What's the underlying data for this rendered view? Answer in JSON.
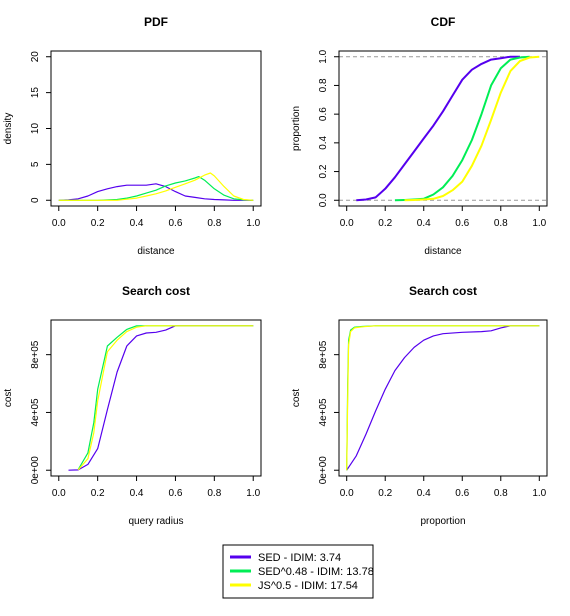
{
  "legend": {
    "entries": [
      {
        "label": "SED - IDIM: 3.74",
        "color": "#5500ee"
      },
      {
        "label": "SED^0.48 - IDIM: 13.78",
        "color": "#00ee55"
      },
      {
        "label": "JS^0.5 - IDIM: 17.54",
        "color": "#ffff00"
      }
    ]
  },
  "chart_data": [
    {
      "type": "line",
      "title": "PDF",
      "xlabel": "distance",
      "ylabel": "density",
      "xlim": [
        0,
        1
      ],
      "ylim": [
        0,
        20
      ],
      "xticks": [
        "0.0",
        "0.2",
        "0.4",
        "0.6",
        "0.8",
        "1.0"
      ],
      "yticks": [
        "0",
        "5",
        "10",
        "15",
        "20"
      ],
      "series": [
        {
          "name": "SED - IDIM: 3.74",
          "color": "#5500ee",
          "x": [
            0,
            0.05,
            0.1,
            0.15,
            0.2,
            0.25,
            0.3,
            0.35,
            0.4,
            0.45,
            0.5,
            0.55,
            0.6,
            0.65,
            0.7,
            0.75,
            0.8,
            0.85,
            0.9,
            0.95,
            1.0
          ],
          "y": [
            0,
            0.05,
            0.2,
            0.6,
            1.2,
            1.6,
            1.9,
            2.1,
            2.1,
            2.1,
            2.3,
            1.9,
            1.2,
            0.6,
            0.4,
            0.2,
            0.1,
            0.05,
            0,
            0,
            0
          ]
        },
        {
          "name": "SED^0.48 - IDIM: 13.78",
          "color": "#00ee55",
          "x": [
            0,
            0.1,
            0.2,
            0.3,
            0.35,
            0.4,
            0.45,
            0.5,
            0.55,
            0.6,
            0.65,
            0.7,
            0.72,
            0.75,
            0.8,
            0.85,
            0.9,
            0.95,
            1.0
          ],
          "y": [
            0,
            0,
            0,
            0.1,
            0.3,
            0.6,
            1.0,
            1.4,
            2.0,
            2.4,
            2.7,
            3.1,
            3.3,
            2.8,
            1.6,
            0.7,
            0.2,
            0.05,
            0
          ]
        },
        {
          "name": "JS^0.5 - IDIM: 17.54",
          "color": "#ffff00",
          "x": [
            0,
            0.1,
            0.2,
            0.3,
            0.4,
            0.45,
            0.5,
            0.55,
            0.6,
            0.65,
            0.7,
            0.75,
            0.78,
            0.8,
            0.85,
            0.9,
            0.95,
            1.0
          ],
          "y": [
            0,
            0,
            0,
            0,
            0.3,
            0.6,
            0.9,
            1.3,
            1.8,
            2.3,
            2.8,
            3.5,
            3.8,
            3.4,
            1.9,
            0.6,
            0.1,
            0
          ]
        }
      ]
    },
    {
      "type": "line",
      "title": "CDF",
      "xlabel": "distance",
      "ylabel": "proportion",
      "xlim": [
        0,
        1
      ],
      "ylim": [
        0,
        1
      ],
      "xticks": [
        "0.0",
        "0.2",
        "0.4",
        "0.6",
        "0.8",
        "1.0"
      ],
      "yticks": [
        "0.0",
        "0.2",
        "0.4",
        "0.6",
        "0.8",
        "1.0"
      ],
      "reference_lines": [
        0,
        1
      ],
      "series": [
        {
          "name": "SED - IDIM: 3.74",
          "color": "#5500ee",
          "x": [
            0.05,
            0.1,
            0.15,
            0.2,
            0.25,
            0.3,
            0.35,
            0.4,
            0.45,
            0.5,
            0.55,
            0.6,
            0.65,
            0.7,
            0.75,
            0.8,
            0.85,
            0.9
          ],
          "y": [
            0,
            0.005,
            0.02,
            0.08,
            0.16,
            0.25,
            0.34,
            0.43,
            0.52,
            0.62,
            0.73,
            0.84,
            0.91,
            0.95,
            0.98,
            0.99,
            1.0,
            1.0
          ]
        },
        {
          "name": "SED^0.48 - IDIM: 13.78",
          "color": "#00ee55",
          "x": [
            0.25,
            0.3,
            0.35,
            0.4,
            0.45,
            0.5,
            0.55,
            0.6,
            0.65,
            0.7,
            0.75,
            0.8,
            0.85,
            0.9,
            0.95
          ],
          "y": [
            0,
            0.002,
            0.005,
            0.01,
            0.04,
            0.09,
            0.17,
            0.28,
            0.42,
            0.6,
            0.8,
            0.92,
            0.98,
            0.995,
            1.0
          ]
        },
        {
          "name": "JS^0.5 - IDIM: 17.54",
          "color": "#ffff00",
          "x": [
            0.3,
            0.35,
            0.4,
            0.45,
            0.5,
            0.55,
            0.6,
            0.65,
            0.7,
            0.75,
            0.8,
            0.85,
            0.9,
            0.95,
            1.0
          ],
          "y": [
            0,
            0.002,
            0.005,
            0.01,
            0.03,
            0.07,
            0.13,
            0.24,
            0.38,
            0.56,
            0.75,
            0.9,
            0.97,
            0.995,
            1.0
          ]
        }
      ]
    },
    {
      "type": "line",
      "title": "Search cost",
      "xlabel": "query radius",
      "ylabel": "cost",
      "xlim": [
        0,
        1
      ],
      "ylim": [
        0,
        1000000
      ],
      "xticks": [
        "0.0",
        "0.2",
        "0.4",
        "0.6",
        "0.8",
        "1.0"
      ],
      "yticks": [
        "0e+00",
        "4e+05",
        "8e+05"
      ],
      "ytick_values": [
        0,
        400000,
        800000
      ],
      "series": [
        {
          "name": "SED - IDIM: 3.74",
          "color": "#5500ee",
          "x": [
            0.05,
            0.1,
            0.15,
            0.2,
            0.25,
            0.3,
            0.35,
            0.4,
            0.45,
            0.5,
            0.55,
            0.6,
            0.7,
            0.8,
            1.0
          ],
          "y": [
            0,
            2000,
            40000,
            150000,
            420000,
            680000,
            860000,
            930000,
            950000,
            955000,
            970000,
            1000000,
            1000000,
            1000000,
            1000000
          ]
        },
        {
          "name": "SED^0.48 - IDIM: 13.78",
          "color": "#00ee55",
          "x": [
            0.1,
            0.15,
            0.18,
            0.2,
            0.25,
            0.3,
            0.35,
            0.4,
            0.45,
            0.5,
            1.0
          ],
          "y": [
            5000,
            120000,
            330000,
            560000,
            860000,
            920000,
            975000,
            1000000,
            1000000,
            1000000,
            1000000
          ]
        },
        {
          "name": "JS^0.5 - IDIM: 17.54",
          "color": "#ffff00",
          "x": [
            0.1,
            0.15,
            0.18,
            0.2,
            0.25,
            0.3,
            0.35,
            0.4,
            0.45,
            0.5,
            1.0
          ],
          "y": [
            2000,
            80000,
            260000,
            480000,
            820000,
            900000,
            960000,
            990000,
            1000000,
            1000000,
            1000000
          ]
        }
      ]
    },
    {
      "type": "line",
      "title": "Search cost",
      "xlabel": "proportion",
      "ylabel": "cost",
      "xlim": [
        0,
        1
      ],
      "ylim": [
        0,
        1000000
      ],
      "xticks": [
        "0.0",
        "0.2",
        "0.4",
        "0.6",
        "0.8",
        "1.0"
      ],
      "yticks": [
        "0e+00",
        "4e+05",
        "8e+05"
      ],
      "ytick_values": [
        0,
        400000,
        800000
      ],
      "series": [
        {
          "name": "SED - IDIM: 3.74",
          "color": "#5500ee",
          "x": [
            0,
            0.05,
            0.1,
            0.15,
            0.2,
            0.25,
            0.3,
            0.35,
            0.4,
            0.45,
            0.5,
            0.6,
            0.7,
            0.75,
            0.8,
            0.85,
            0.9,
            1.0
          ],
          "y": [
            0,
            100000,
            250000,
            410000,
            560000,
            690000,
            780000,
            850000,
            900000,
            930000,
            945000,
            955000,
            960000,
            965000,
            985000,
            1000000,
            1000000,
            1000000
          ]
        },
        {
          "name": "SED^0.48 - IDIM: 13.78",
          "color": "#00ee55",
          "x": [
            0,
            0.005,
            0.01,
            0.02,
            0.04,
            0.08,
            0.15,
            0.3,
            1.0
          ],
          "y": [
            0,
            600000,
            900000,
            970000,
            990000,
            995000,
            1000000,
            1000000,
            1000000
          ]
        },
        {
          "name": "JS^0.5 - IDIM: 17.54",
          "color": "#ffff00",
          "x": [
            0,
            0.005,
            0.01,
            0.02,
            0.04,
            0.08,
            0.15,
            0.3,
            1.0
          ],
          "y": [
            0,
            500000,
            870000,
            960000,
            985000,
            993000,
            1000000,
            1000000,
            1000000
          ]
        }
      ]
    }
  ]
}
